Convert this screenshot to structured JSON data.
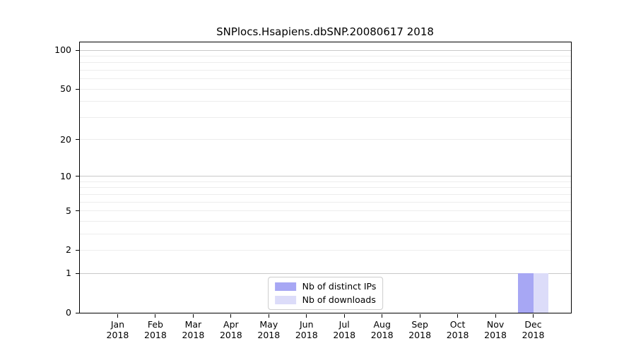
{
  "chart_data": {
    "type": "bar",
    "title": "SNPlocs.Hsapiens.dbSNP.20080617 2018",
    "x_year": "2018",
    "categories": [
      "Jan",
      "Feb",
      "Mar",
      "Apr",
      "May",
      "Jun",
      "Jul",
      "Aug",
      "Sep",
      "Oct",
      "Nov",
      "Dec"
    ],
    "series": [
      {
        "name": "Nb of distinct IPs",
        "color": "#a7a7f4",
        "values": [
          0,
          0,
          0,
          0,
          0,
          0,
          0,
          0,
          0,
          0,
          0,
          1
        ]
      },
      {
        "name": "Nb of downloads",
        "color": "#dcdcf9",
        "values": [
          0,
          0,
          0,
          0,
          0,
          0,
          0,
          0,
          0,
          0,
          0,
          1
        ]
      }
    ],
    "y_scale": "log1p",
    "ylim": [
      0,
      115
    ],
    "y_tick_values": [
      0,
      1,
      2,
      5,
      10,
      20,
      50,
      100
    ],
    "y_major_gridlines": [
      1,
      10,
      100
    ],
    "y_minor_gridlines": [
      2,
      3,
      4,
      5,
      6,
      7,
      8,
      9,
      20,
      30,
      40,
      50,
      60,
      70,
      80,
      90
    ],
    "grid": "horizontal",
    "legend_position": "lower center"
  },
  "colors": {
    "major_grid": "#c9c9c9",
    "minor_grid": "#ededed",
    "axis": "#000000",
    "legend_border": "#cccccc"
  }
}
